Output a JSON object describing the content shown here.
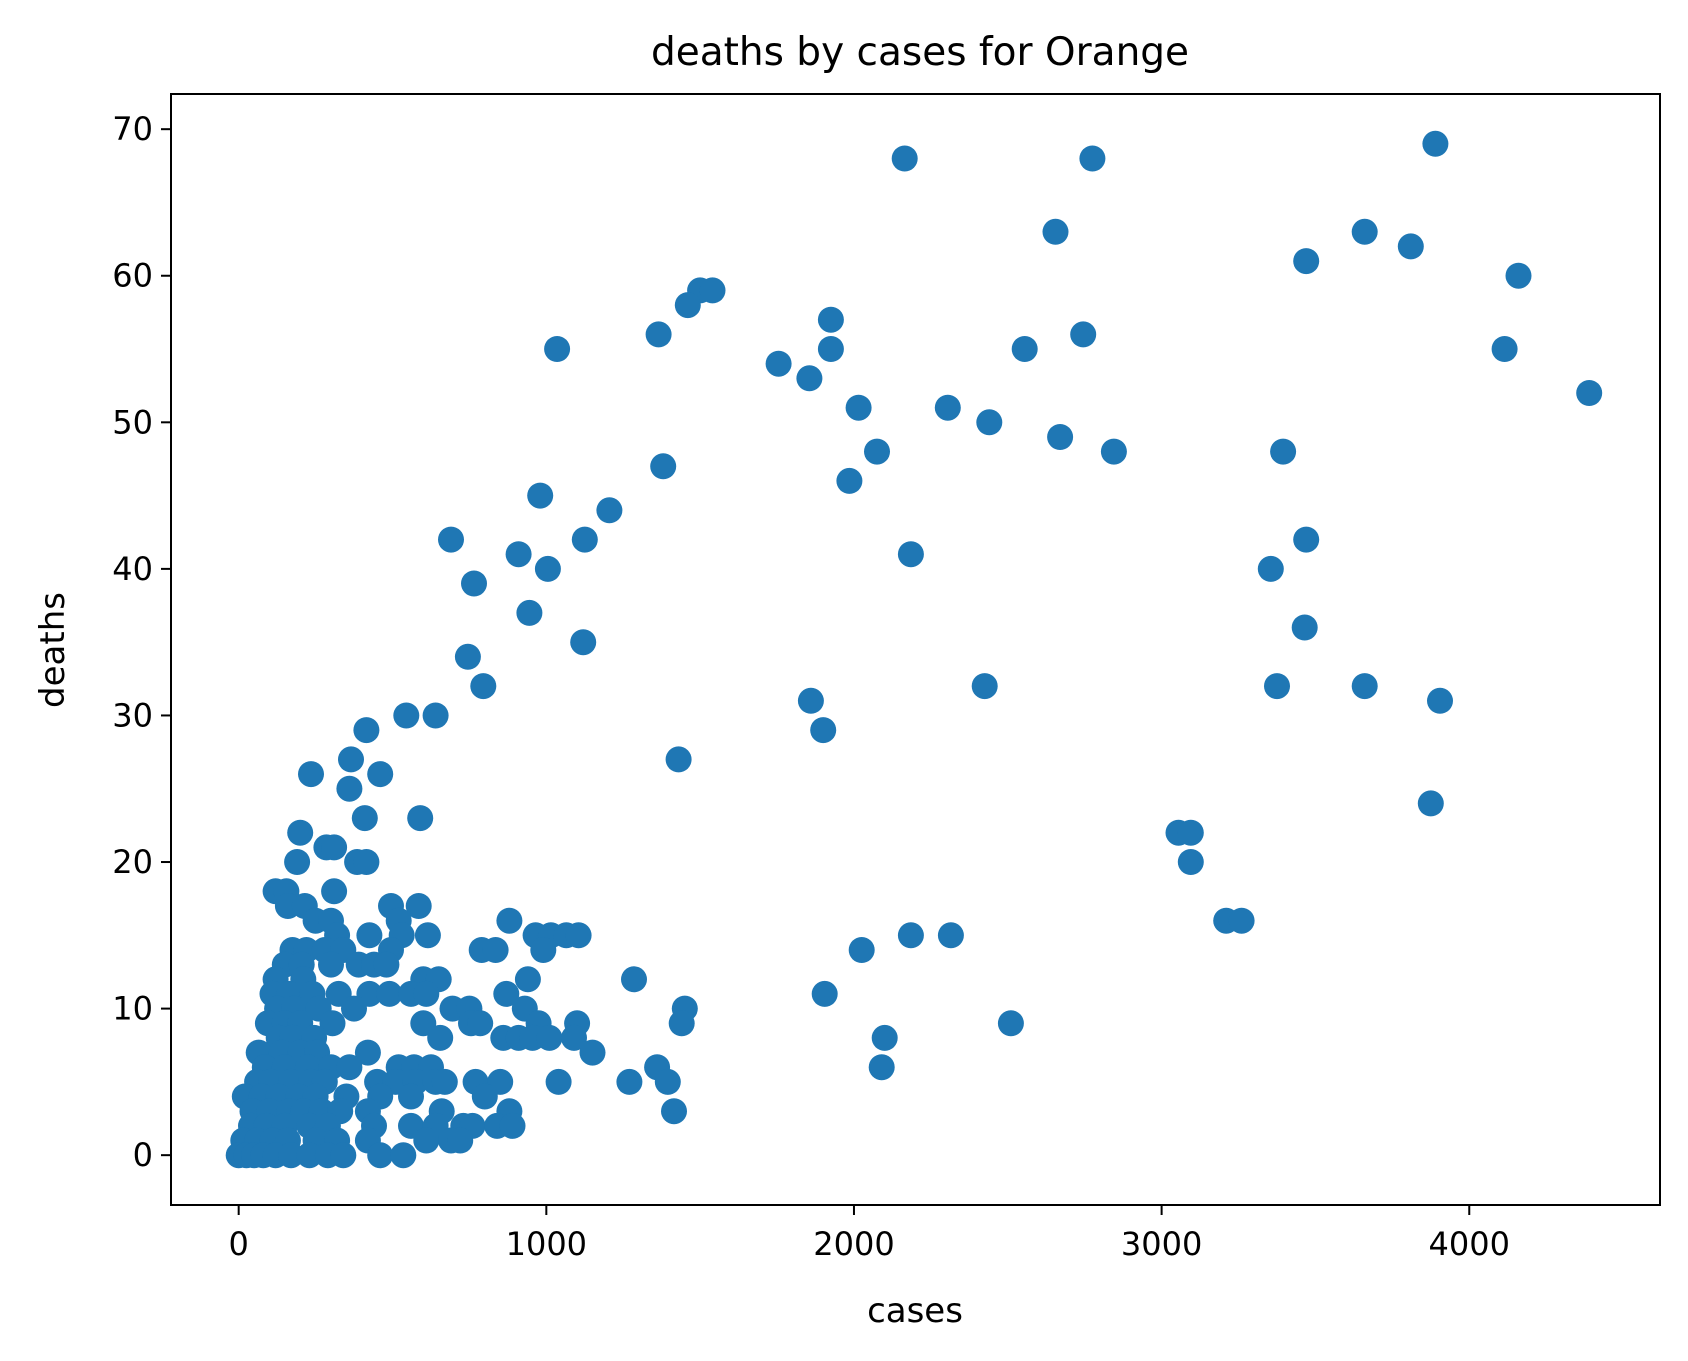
{
  "chart_data": {
    "type": "scatter",
    "title": "deaths by cases for Orange",
    "xlabel": "cases",
    "ylabel": "deaths",
    "xlim": [
      -220,
      4620
    ],
    "ylim": [
      -3.4,
      72.4
    ],
    "x_ticks": [
      0,
      1000,
      2000,
      3000,
      4000
    ],
    "y_ticks": [
      0,
      10,
      20,
      30,
      40,
      50,
      60,
      70
    ],
    "grid": false,
    "legend": null,
    "marker_color": "#1f77b4",
    "series": [
      {
        "points": [
          [
            3890,
            69
          ],
          [
            2165,
            68
          ],
          [
            2775,
            68
          ],
          [
            2655,
            63
          ],
          [
            3660,
            63
          ],
          [
            3810,
            62
          ],
          [
            3470,
            61
          ],
          [
            4160,
            60
          ],
          [
            1500,
            59
          ],
          [
            1540,
            59
          ],
          [
            1460,
            58
          ],
          [
            1925,
            57
          ],
          [
            1365,
            56
          ],
          [
            2745,
            56
          ],
          [
            1035,
            55
          ],
          [
            1925,
            55
          ],
          [
            2555,
            55
          ],
          [
            4115,
            55
          ],
          [
            1755,
            54
          ],
          [
            1855,
            53
          ],
          [
            4390,
            52
          ],
          [
            2015,
            51
          ],
          [
            2305,
            51
          ],
          [
            2440,
            50
          ],
          [
            2670,
            49
          ],
          [
            2075,
            48
          ],
          [
            2845,
            48
          ],
          [
            3395,
            48
          ],
          [
            1380,
            47
          ],
          [
            1985,
            46
          ],
          [
            980,
            45
          ],
          [
            1205,
            44
          ],
          [
            690,
            42
          ],
          [
            1125,
            42
          ],
          [
            3470,
            42
          ],
          [
            910,
            41
          ],
          [
            2185,
            41
          ],
          [
            1005,
            40
          ],
          [
            3355,
            40
          ],
          [
            765,
            39
          ],
          [
            945,
            37
          ],
          [
            3465,
            36
          ],
          [
            1120,
            35
          ],
          [
            745,
            34
          ],
          [
            795,
            32
          ],
          [
            2425,
            32
          ],
          [
            3375,
            32
          ],
          [
            3660,
            32
          ],
          [
            1860,
            31
          ],
          [
            3905,
            31
          ],
          [
            545,
            30
          ],
          [
            640,
            30
          ],
          [
            1900,
            29
          ],
          [
            415,
            29
          ],
          [
            365,
            27
          ],
          [
            1430,
            27
          ],
          [
            235,
            26
          ],
          [
            460,
            26
          ],
          [
            360,
            25
          ],
          [
            3875,
            24
          ],
          [
            590,
            23
          ],
          [
            410,
            23
          ],
          [
            200,
            22
          ],
          [
            3055,
            22
          ],
          [
            3095,
            22
          ],
          [
            285,
            21
          ],
          [
            310,
            21
          ],
          [
            385,
            20
          ],
          [
            415,
            20
          ],
          [
            190,
            20
          ],
          [
            3095,
            20
          ],
          [
            120,
            18
          ],
          [
            155,
            18
          ],
          [
            310,
            18
          ],
          [
            160,
            17
          ],
          [
            215,
            17
          ],
          [
            495,
            17
          ],
          [
            585,
            17
          ],
          [
            250,
            16
          ],
          [
            300,
            16
          ],
          [
            520,
            16
          ],
          [
            880,
            16
          ],
          [
            3210,
            16
          ],
          [
            3260,
            16
          ],
          [
            320,
            15
          ],
          [
            425,
            15
          ],
          [
            530,
            15
          ],
          [
            615,
            15
          ],
          [
            965,
            15
          ],
          [
            1015,
            15
          ],
          [
            1065,
            15
          ],
          [
            1105,
            15
          ],
          [
            2185,
            15
          ],
          [
            2315,
            15
          ],
          [
            175,
            14
          ],
          [
            220,
            14
          ],
          [
            280,
            14
          ],
          [
            340,
            14
          ],
          [
            495,
            14
          ],
          [
            790,
            14
          ],
          [
            835,
            14
          ],
          [
            990,
            14
          ],
          [
            2025,
            14
          ],
          [
            150,
            13
          ],
          [
            205,
            13
          ],
          [
            300,
            13
          ],
          [
            390,
            13
          ],
          [
            440,
            13
          ],
          [
            480,
            13
          ],
          [
            120,
            12
          ],
          [
            210,
            12
          ],
          [
            600,
            12
          ],
          [
            650,
            12
          ],
          [
            940,
            12
          ],
          [
            1285,
            12
          ],
          [
            110,
            11
          ],
          [
            165,
            11
          ],
          [
            240,
            11
          ],
          [
            325,
            11
          ],
          [
            425,
            11
          ],
          [
            490,
            11
          ],
          [
            560,
            11
          ],
          [
            610,
            11
          ],
          [
            870,
            11
          ],
          [
            1905,
            11
          ],
          [
            125,
            10
          ],
          [
            180,
            10
          ],
          [
            260,
            10
          ],
          [
            375,
            10
          ],
          [
            695,
            10
          ],
          [
            750,
            10
          ],
          [
            930,
            10
          ],
          [
            1450,
            10
          ],
          [
            95,
            9
          ],
          [
            150,
            9
          ],
          [
            200,
            9
          ],
          [
            305,
            9
          ],
          [
            600,
            9
          ],
          [
            755,
            9
          ],
          [
            785,
            9
          ],
          [
            975,
            9
          ],
          [
            1100,
            9
          ],
          [
            1440,
            9
          ],
          [
            2510,
            9
          ],
          [
            130,
            8
          ],
          [
            175,
            8
          ],
          [
            245,
            8
          ],
          [
            655,
            8
          ],
          [
            860,
            8
          ],
          [
            910,
            8
          ],
          [
            955,
            8
          ],
          [
            1010,
            8
          ],
          [
            1090,
            8
          ],
          [
            2100,
            8
          ],
          [
            65,
            7
          ],
          [
            140,
            7
          ],
          [
            200,
            7
          ],
          [
            255,
            7
          ],
          [
            420,
            7
          ],
          [
            1150,
            7
          ],
          [
            85,
            6
          ],
          [
            150,
            6
          ],
          [
            225,
            6
          ],
          [
            300,
            6
          ],
          [
            360,
            6
          ],
          [
            520,
            6
          ],
          [
            570,
            6
          ],
          [
            625,
            6
          ],
          [
            1360,
            6
          ],
          [
            2090,
            6
          ],
          [
            60,
            5
          ],
          [
            105,
            5
          ],
          [
            170,
            5
          ],
          [
            235,
            5
          ],
          [
            280,
            5
          ],
          [
            450,
            5
          ],
          [
            510,
            5
          ],
          [
            575,
            5
          ],
          [
            640,
            5
          ],
          [
            670,
            5
          ],
          [
            770,
            5
          ],
          [
            850,
            5
          ],
          [
            1040,
            5
          ],
          [
            1270,
            5
          ],
          [
            1395,
            5
          ],
          [
            20,
            4
          ],
          [
            75,
            4
          ],
          [
            130,
            4
          ],
          [
            195,
            4
          ],
          [
            250,
            4
          ],
          [
            350,
            4
          ],
          [
            460,
            4
          ],
          [
            560,
            4
          ],
          [
            800,
            4
          ],
          [
            45,
            3
          ],
          [
            100,
            3
          ],
          [
            165,
            3
          ],
          [
            210,
            3
          ],
          [
            270,
            3
          ],
          [
            330,
            3
          ],
          [
            420,
            3
          ],
          [
            660,
            3
          ],
          [
            880,
            3
          ],
          [
            1415,
            3
          ],
          [
            40,
            2
          ],
          [
            90,
            2
          ],
          [
            150,
            2
          ],
          [
            230,
            2
          ],
          [
            290,
            2
          ],
          [
            440,
            2
          ],
          [
            560,
            2
          ],
          [
            640,
            2
          ],
          [
            730,
            2
          ],
          [
            760,
            2
          ],
          [
            840,
            2
          ],
          [
            890,
            2
          ],
          [
            15,
            1
          ],
          [
            60,
            1
          ],
          [
            110,
            1
          ],
          [
            160,
            1
          ],
          [
            250,
            1
          ],
          [
            320,
            1
          ],
          [
            420,
            1
          ],
          [
            610,
            1
          ],
          [
            690,
            1
          ],
          [
            720,
            1
          ],
          [
            0,
            0
          ],
          [
            25,
            0
          ],
          [
            50,
            0
          ],
          [
            80,
            0
          ],
          [
            120,
            0
          ],
          [
            170,
            0
          ],
          [
            230,
            0
          ],
          [
            290,
            0
          ],
          [
            340,
            0
          ],
          [
            460,
            0
          ],
          [
            535,
            0
          ]
        ]
      }
    ]
  }
}
